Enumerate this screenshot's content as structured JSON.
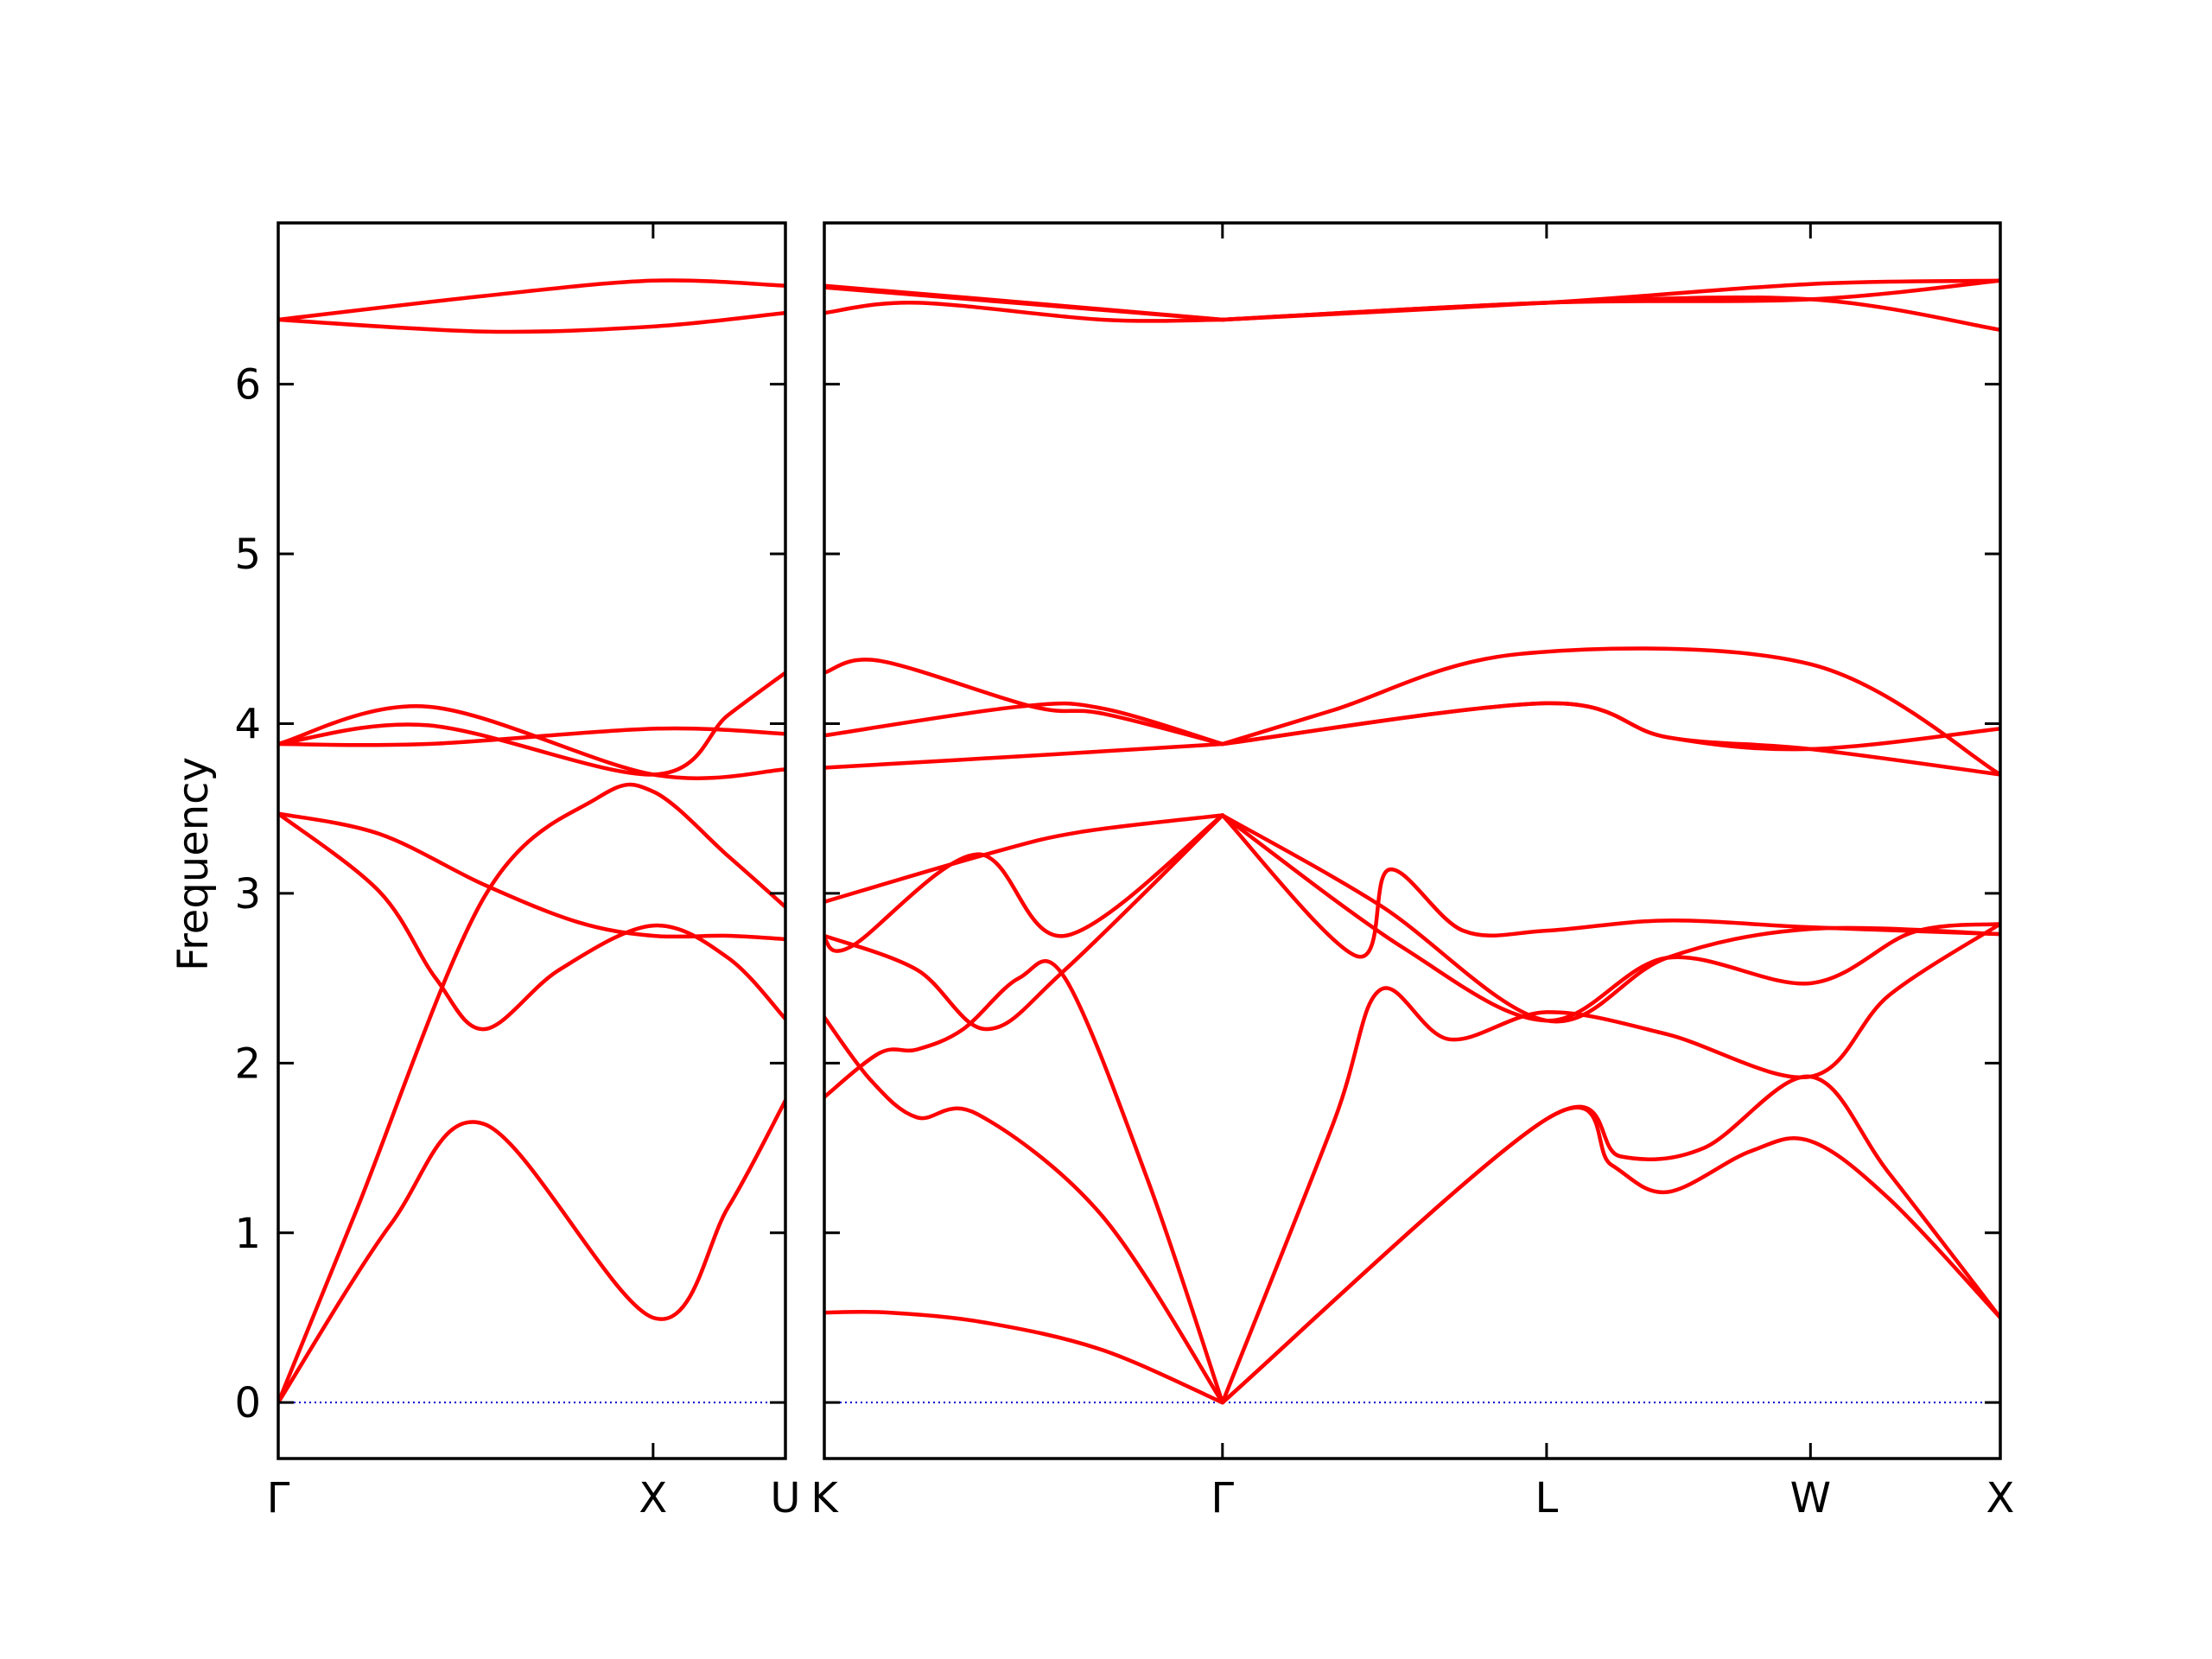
{
  "chart_data": {
    "type": "line",
    "ylabel": "Frequency",
    "xlabel": "",
    "title": "",
    "ylim": [
      -0.33,
      6.95
    ],
    "yticks": [
      0,
      1,
      2,
      3,
      4,
      5,
      6
    ],
    "grid": false,
    "line_color": "#ff0000",
    "zero_line_color": "#0000cc",
    "panels": [
      {
        "name": "left",
        "xlim": [
          0,
          1.353
        ],
        "ticks": [
          {
            "label": "Γ",
            "x": 0
          },
          {
            "label": "X",
            "x": 1.0
          },
          {
            "label": "U",
            "x": 1.353
          }
        ],
        "bands": [
          [
            [
              0,
              0
            ],
            [
              0.3,
              1.05
            ],
            [
              0.55,
              1.64
            ],
            [
              1.0,
              0.5
            ],
            [
              1.2,
              1.15
            ],
            [
              1.353,
              1.78
            ]
          ],
          [
            [
              0,
              0
            ],
            [
              0.21,
              1.14
            ],
            [
              0.55,
              2.98
            ],
            [
              0.85,
              3.56
            ],
            [
              1.0,
              3.6
            ],
            [
              1.2,
              3.22
            ],
            [
              1.353,
              2.92
            ]
          ],
          [
            [
              0,
              3.47
            ],
            [
              0.27,
              3.01
            ],
            [
              0.42,
              2.5
            ],
            [
              0.55,
              2.2
            ],
            [
              0.75,
              2.55
            ],
            [
              1.0,
              2.81
            ],
            [
              1.2,
              2.62
            ],
            [
              1.353,
              2.26
            ]
          ],
          [
            [
              0,
              3.47
            ],
            [
              0.27,
              3.35
            ],
            [
              0.55,
              3.05
            ],
            [
              0.8,
              2.83
            ],
            [
              1.0,
              2.75
            ],
            [
              1.2,
              2.75
            ],
            [
              1.353,
              2.73
            ]
          ],
          [
            [
              0,
              3.88
            ],
            [
              0.4,
              4.1
            ],
            [
              1.0,
              3.7
            ],
            [
              1.353,
              3.73
            ]
          ],
          [
            [
              0,
              3.88
            ],
            [
              0.4,
              3.88
            ],
            [
              1.0,
              3.97
            ],
            [
              1.353,
              3.94
            ]
          ],
          [
            [
              0,
              3.88
            ],
            [
              0.4,
              3.99
            ],
            [
              1.0,
              3.7
            ],
            [
              1.2,
              4.05
            ],
            [
              1.353,
              4.3
            ]
          ],
          [
            [
              0,
              6.38
            ],
            [
              0.55,
              6.31
            ],
            [
              1.0,
              6.34
            ],
            [
              1.353,
              6.42
            ]
          ],
          [
            [
              0,
              6.38
            ],
            [
              0.55,
              6.52
            ],
            [
              1.0,
              6.61
            ],
            [
              1.353,
              6.58
            ]
          ]
        ]
      },
      {
        "name": "right",
        "xlim": [
          0,
          2.54
        ],
        "ticks": [
          {
            "label": "K",
            "x": 0
          },
          {
            "label": "Γ",
            "x": 0.86
          },
          {
            "label": "L",
            "x": 1.56
          },
          {
            "label": "W",
            "x": 2.13
          },
          {
            "label": "X",
            "x": 2.54
          }
        ],
        "bands": [
          [
            [
              0,
              0.53
            ],
            [
              0.14,
              0.53
            ],
            [
              0.35,
              0.47
            ],
            [
              0.6,
              0.31
            ],
            [
              0.86,
              0
            ]
          ],
          [
            [
              0,
              1.8
            ],
            [
              0.12,
              2.06
            ],
            [
              0.2,
              2.08
            ],
            [
              0.3,
              2.2
            ],
            [
              0.42,
              2.5
            ],
            [
              0.52,
              2.5
            ],
            [
              0.7,
              1.3
            ],
            [
              0.86,
              0
            ]
          ],
          [
            [
              0,
              2.27
            ],
            [
              0.1,
              1.9
            ],
            [
              0.2,
              1.68
            ],
            [
              0.33,
              1.7
            ],
            [
              0.6,
              1.1
            ],
            [
              0.86,
              0
            ]
          ],
          [
            [
              0,
              2.75
            ],
            [
              0.2,
              2.55
            ],
            [
              0.35,
              2.2
            ],
            [
              0.52,
              2.55
            ],
            [
              0.86,
              3.46
            ]
          ],
          [
            [
              0,
              2.95
            ],
            [
              0.35,
              3.23
            ],
            [
              0.55,
              3.36
            ],
            [
              0.86,
              3.46
            ]
          ],
          [
            [
              0,
              2.73
            ],
            [
              0.06,
              2.69
            ],
            [
              0.33,
              3.23
            ],
            [
              0.52,
              2.75
            ],
            [
              0.86,
              3.46
            ]
          ],
          [
            [
              0,
              3.74
            ],
            [
              0.5,
              3.82
            ],
            [
              0.86,
              3.88
            ]
          ],
          [
            [
              0,
              3.93
            ],
            [
              0.42,
              4.1
            ],
            [
              0.6,
              4.09
            ],
            [
              0.86,
              3.88
            ]
          ],
          [
            [
              0,
              4.3
            ],
            [
              0.12,
              4.37
            ],
            [
              0.45,
              4.1
            ],
            [
              0.6,
              4.06
            ],
            [
              0.86,
              3.88
            ]
          ],
          [
            [
              0,
              6.58
            ],
            [
              0.35,
              6.5
            ],
            [
              0.86,
              6.38
            ]
          ],
          [
            [
              0,
              6.42
            ],
            [
              0.2,
              6.48
            ],
            [
              0.6,
              6.38
            ],
            [
              0.86,
              6.38
            ]
          ],
          [
            [
              0,
              6.57
            ],
            [
              0.86,
              6.38
            ]
          ],
          [
            [
              0.86,
              0
            ],
            [
              1.56,
              1.67
            ],
            [
              1.7,
              1.4
            ],
            [
              1.82,
              1.24
            ],
            [
              2.0,
              1.48
            ],
            [
              2.13,
              1.54
            ],
            [
              2.3,
              1.2
            ],
            [
              2.54,
              0.5
            ]
          ],
          [
            [
              0.86,
              0
            ],
            [
              1.56,
              1.67
            ],
            [
              1.72,
              1.45
            ],
            [
              1.9,
              1.5
            ],
            [
              2.13,
              1.92
            ],
            [
              2.3,
              1.35
            ],
            [
              2.54,
              0.5
            ]
          ],
          [
            [
              0.86,
              0
            ],
            [
              1.1,
              1.65
            ],
            [
              1.2,
              2.43
            ],
            [
              1.35,
              2.14
            ],
            [
              1.56,
              2.3
            ],
            [
              1.82,
              2.17
            ],
            [
              2.13,
              1.92
            ],
            [
              2.3,
              2.4
            ],
            [
              2.54,
              2.82
            ]
          ],
          [
            [
              0.86,
              3.46
            ],
            [
              1.15,
              2.63
            ],
            [
              1.22,
              3.14
            ],
            [
              1.38,
              2.78
            ],
            [
              1.56,
              2.78
            ],
            [
              1.82,
              2.84
            ],
            [
              2.13,
              2.8
            ],
            [
              2.54,
              2.76
            ]
          ],
          [
            [
              0.86,
              3.46
            ],
            [
              1.25,
              2.68
            ],
            [
              1.56,
              2.25
            ],
            [
              1.82,
              2.62
            ],
            [
              2.13,
              2.47
            ],
            [
              2.35,
              2.77
            ],
            [
              2.54,
              2.82
            ]
          ],
          [
            [
              0.86,
              3.46
            ],
            [
              1.2,
              2.93
            ],
            [
              1.56,
              2.25
            ],
            [
              1.82,
              2.62
            ],
            [
              2.13,
              2.79
            ],
            [
              2.54,
              2.76
            ]
          ],
          [
            [
              0.86,
              3.88
            ],
            [
              1.56,
              4.12
            ],
            [
              1.82,
              3.92
            ],
            [
              2.13,
              3.85
            ],
            [
              2.54,
              3.7
            ]
          ],
          [
            [
              0.86,
              3.88
            ],
            [
              1.56,
              4.12
            ],
            [
              1.82,
              3.92
            ],
            [
              2.13,
              3.85
            ],
            [
              2.54,
              3.97
            ]
          ],
          [
            [
              0.86,
              3.88
            ],
            [
              1.1,
              4.08
            ],
            [
              1.5,
              4.41
            ],
            [
              2.13,
              4.35
            ],
            [
              2.54,
              3.7
            ]
          ],
          [
            [
              0.86,
              6.38
            ],
            [
              1.56,
              6.48
            ],
            [
              2.13,
              6.5
            ],
            [
              2.54,
              6.32
            ]
          ],
          [
            [
              0.86,
              6.38
            ],
            [
              1.56,
              6.48
            ],
            [
              2.13,
              6.59
            ],
            [
              2.54,
              6.61
            ]
          ],
          [
            [
              0.86,
              6.38
            ],
            [
              1.56,
              6.48
            ],
            [
              2.13,
              6.5
            ],
            [
              2.54,
              6.61
            ]
          ]
        ]
      }
    ]
  }
}
